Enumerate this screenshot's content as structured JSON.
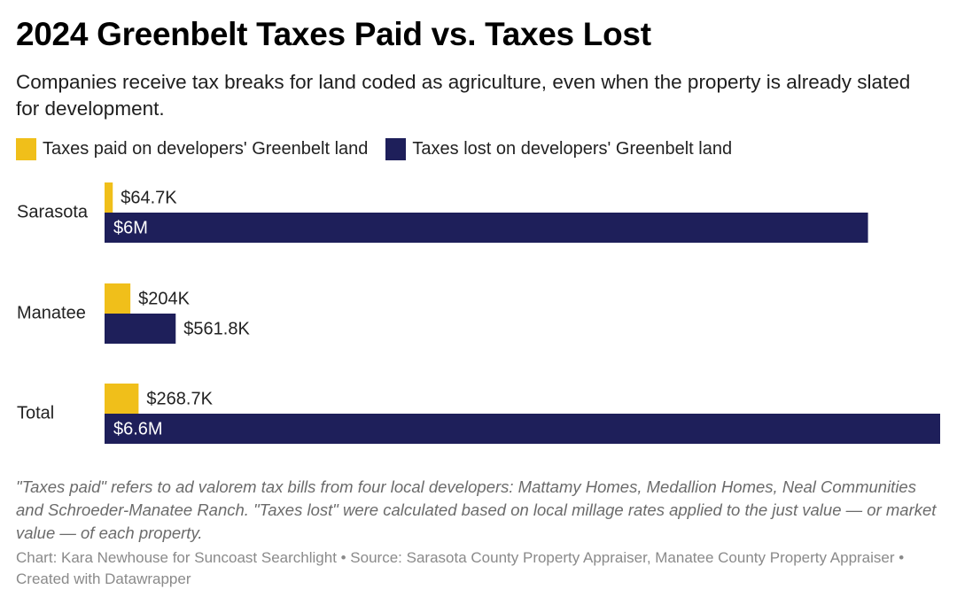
{
  "title": "2024 Greenbelt Taxes Paid vs. Taxes Lost",
  "subtitle": "Companies receive tax breaks for land coded as agriculture, even when the property is already slated for development.",
  "legend": [
    {
      "label": "Taxes paid on developers' Greenbelt land",
      "color": "#f0bf1a"
    },
    {
      "label": "Taxes lost on developers' Greenbelt land",
      "color": "#1e1f5a"
    }
  ],
  "notes": "\"Taxes paid\" refers to ad valorem tax bills from four local developers: Mattamy Homes, Medallion Homes, Neal Communities and Schroeder-Manatee Ranch. \"Taxes lost\" were calculated based on local millage rates applied to the just value — or market value — of each property.",
  "credits": "Chart: Kara Newhouse for Suncoast Searchlight • Source: Sarasota County Property Appraiser, Manatee County Property Appraiser • Created with Datawrapper",
  "chart_data": {
    "type": "bar",
    "orientation": "horizontal",
    "categories": [
      "Sarasota",
      "Manatee",
      "Total"
    ],
    "series": [
      {
        "name": "Taxes paid on developers' Greenbelt land",
        "color": "#f0bf1a",
        "values": [
          64700,
          204000,
          268700
        ],
        "labels": [
          "$64.7K",
          "$204K",
          "$268.7K"
        ]
      },
      {
        "name": "Taxes lost on developers' Greenbelt land",
        "color": "#1e1f5a",
        "values": [
          6030000,
          561800,
          6600000
        ],
        "labels": [
          "$6M",
          "$561.8K",
          "$6.6M"
        ]
      }
    ],
    "xlim": [
      0,
      6600000
    ],
    "grid": false,
    "legend_position": "top-left"
  }
}
